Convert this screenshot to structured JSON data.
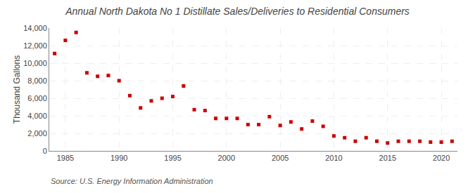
{
  "chart_data": {
    "type": "scatter",
    "title": "Annual North Dakota No 1 Distillate Sales/Deliveries to Residential Consumers",
    "ylabel": "Thousand Gallons",
    "annotations": [
      "Source: U.S. Energy Information Administration"
    ],
    "x": [
      1984,
      1985,
      1986,
      1987,
      1988,
      1989,
      1990,
      1991,
      1992,
      1993,
      1994,
      1995,
      1996,
      1997,
      1998,
      1999,
      2000,
      2001,
      2002,
      2003,
      2004,
      2005,
      2006,
      2007,
      2008,
      2009,
      2010,
      2011,
      2012,
      2013,
      2014,
      2015,
      2016,
      2017,
      2018,
      2019,
      2020,
      2021
    ],
    "values": [
      11100,
      12600,
      13500,
      8900,
      8500,
      8600,
      8000,
      6300,
      4900,
      5700,
      6000,
      6200,
      7400,
      4700,
      4600,
      3700,
      3700,
      3700,
      3000,
      3000,
      3900,
      2900,
      3300,
      2500,
      3400,
      2800,
      1700,
      1500,
      1100,
      1500,
      1100,
      900,
      1100,
      1100,
      1100,
      1000,
      1000,
      1100
    ],
    "color": "#cc0000",
    "marker": "square",
    "xlim": [
      1983.5,
      2021.5
    ],
    "ylim": [
      0,
      14000
    ],
    "xticks": [
      1985,
      1990,
      1995,
      2000,
      2005,
      2010,
      2015,
      2020
    ],
    "yticks": [
      0,
      {
        "value": 2000,
        "label": "2,000"
      },
      {
        "value": 4000,
        "label": "4,000"
      },
      {
        "value": 6000,
        "label": "6,000"
      },
      {
        "value": 8000,
        "label": "8,000"
      },
      {
        "value": 10000,
        "label": "10,000"
      },
      {
        "value": 12000,
        "label": "12,000"
      },
      {
        "value": 14000,
        "label": "14,000"
      }
    ],
    "grid": true
  }
}
